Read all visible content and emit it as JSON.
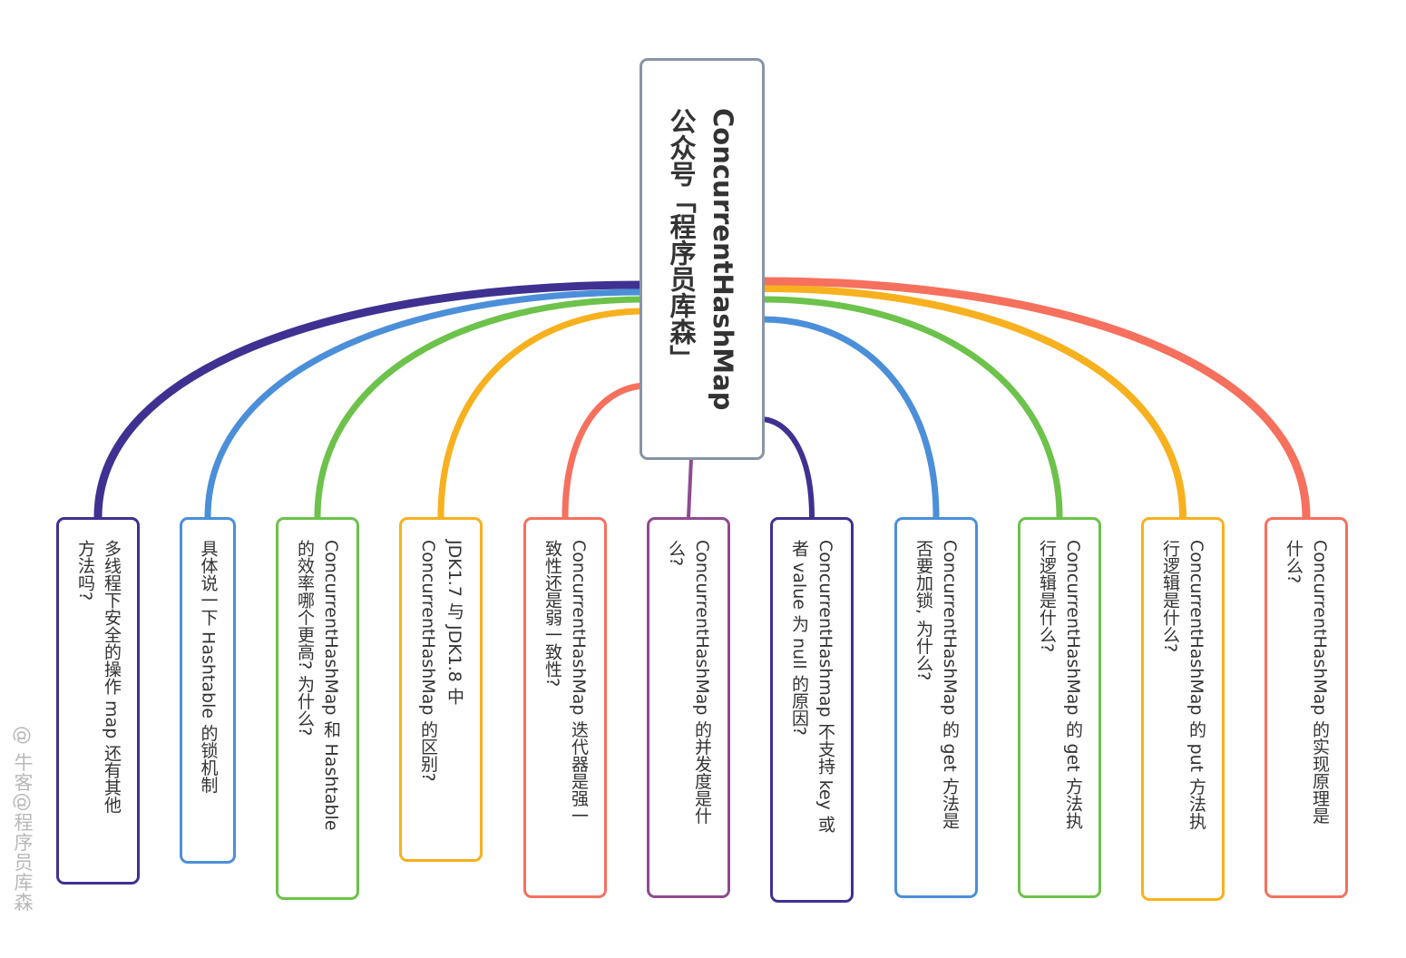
{
  "root": {
    "line1": "ConcurrentHashMap",
    "line2": "公众号「程序员库森」"
  },
  "branches": [
    {
      "color": "#3f3191",
      "a": "多线程下安全的操作 map 还有其他",
      "b": "方法吗?"
    },
    {
      "color": "#4b8fd9",
      "a": "具体说一下 Hashtable 的锁机制",
      "b": ""
    },
    {
      "color": "#6cc24a",
      "a": "ConcurrentHashMap 和 Hashtable",
      "b": "的效率哪个更高? 为什么?"
    },
    {
      "color": "#f7b11e",
      "a": "JDK1.7 与 JDK1.8 中",
      "b": "ConcurrentHashMap 的区别?"
    },
    {
      "color": "#f6705e",
      "a": "ConcurrentHashMap 迭代器是强一",
      "b": "致性还是弱一致性?"
    },
    {
      "color": "#8f4a8f",
      "a": "ConcurrentHashMap 的并发度是什",
      "b": "么?"
    },
    {
      "color": "#3f3191",
      "a": "ConcurrentHashmap 不支持 key 或",
      "b": "者 value 为 null 的原因?"
    },
    {
      "color": "#4b8fd9",
      "a": "ConcurrentHashMap 的 get 方法是",
      "b": "否要加锁, 为什么?"
    },
    {
      "color": "#6cc24a",
      "a": "ConcurrentHashMap 的 get 方法执",
      "b": "行逻辑是什么?"
    },
    {
      "color": "#f7b11e",
      "a": "ConcurrentHashMap 的 put 方法执",
      "b": "行逻辑是什么?"
    },
    {
      "color": "#f6705e",
      "a": "ConcurrentHashMap 的实现原理是",
      "b": "什么?"
    }
  ],
  "watermark": "@ 牛客@程序员库森"
}
